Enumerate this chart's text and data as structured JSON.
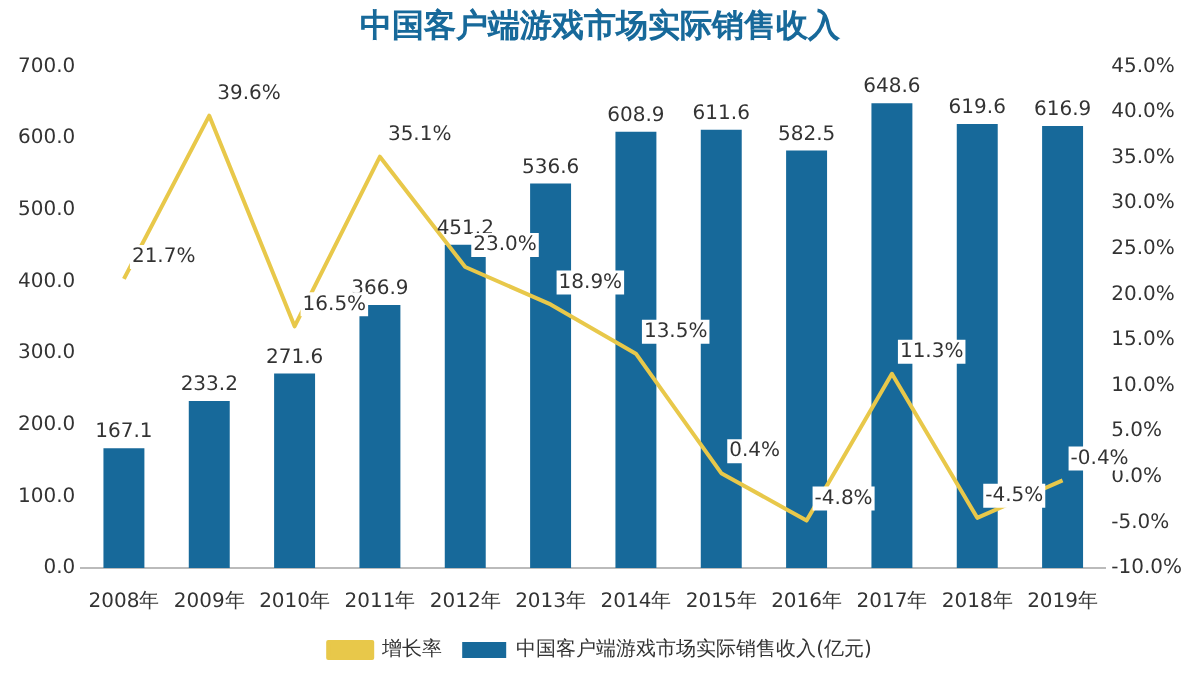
{
  "chart_data": {
    "type": "bar",
    "title": "中国客户端游戏市场实际销售收入",
    "categories": [
      "2008年",
      "2009年",
      "2010年",
      "2011年",
      "2012年",
      "2013年",
      "2014年",
      "2015年",
      "2016年",
      "2017年",
      "2018年",
      "2019年"
    ],
    "series": [
      {
        "name": "中国客户端游戏市场实际销售收入(亿元)",
        "color": "#17699a",
        "values": [
          167.1,
          233.2,
          271.6,
          366.9,
          451.2,
          536.6,
          608.9,
          611.6,
          582.5,
          648.6,
          619.6,
          616.9
        ],
        "value_labels": [
          "167.1",
          "233.2",
          "271.6",
          "366.9",
          "451.2",
          "536.6",
          "608.9",
          "611.6",
          "582.5",
          "648.6",
          "619.6",
          "616.9"
        ]
      },
      {
        "name": "增长率",
        "type": "line",
        "axis": "y2",
        "color": "#e8c84a",
        "values": [
          21.7,
          39.6,
          16.5,
          35.1,
          23.0,
          18.9,
          13.5,
          0.4,
          -4.8,
          11.3,
          -4.5,
          -0.4
        ],
        "value_labels": [
          "21.7%",
          "39.6%",
          "16.5%",
          "35.1%",
          "23.0%",
          "18.9%",
          "13.5%",
          "0.4%",
          "-4.8%",
          "11.3%",
          "-4.5%",
          "-0.4%"
        ]
      }
    ],
    "ylim": [
      0,
      700
    ],
    "yticks": [
      {
        "value": 0,
        "label": "0.0"
      },
      {
        "value": 100,
        "label": "100.0"
      },
      {
        "value": 200,
        "label": "200.0"
      },
      {
        "value": 300,
        "label": "300.0"
      },
      {
        "value": 400,
        "label": "400.0"
      },
      {
        "value": 500,
        "label": "500.0"
      },
      {
        "value": 600,
        "label": "600.0"
      },
      {
        "value": 700,
        "label": "700.0"
      }
    ],
    "y2lim": [
      -10,
      45
    ],
    "y2ticks": [
      {
        "value": -10,
        "label": "-10.0%"
      },
      {
        "value": -5,
        "label": "-5.0%"
      },
      {
        "value": 0,
        "label": "0.0%"
      },
      {
        "value": 5,
        "label": "5.0%"
      },
      {
        "value": 10,
        "label": "10.0%"
      },
      {
        "value": 15,
        "label": "15.0%"
      },
      {
        "value": 20,
        "label": "20.0%"
      },
      {
        "value": 25,
        "label": "25.0%"
      },
      {
        "value": 30,
        "label": "30.0%"
      },
      {
        "value": 35,
        "label": "35.0%"
      },
      {
        "value": 40,
        "label": "40.0%"
      },
      {
        "value": 45,
        "label": "45.0%"
      }
    ],
    "grid": false,
    "legend": "bottom",
    "marker": "none",
    "line_style": "solid"
  }
}
